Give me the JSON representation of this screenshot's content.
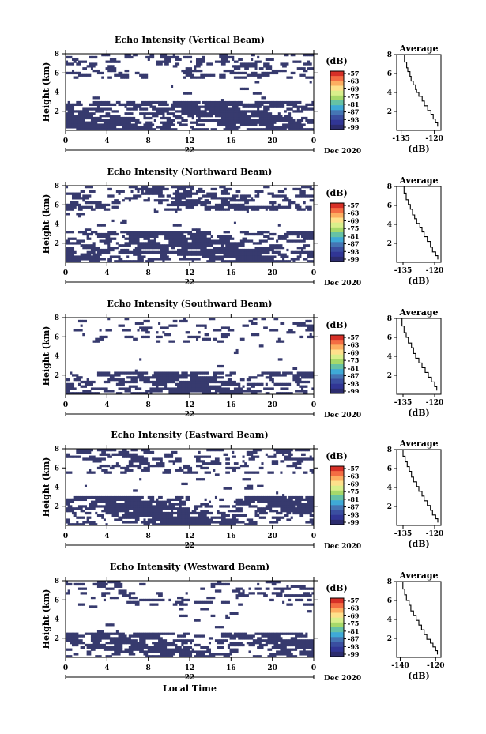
{
  "chart_data": [
    {
      "type": "heatmap",
      "title": "Echo Intensity (Vertical Beam)",
      "ylabel": "Height (km)",
      "xlim": [
        0,
        24
      ],
      "ylim": [
        0,
        8
      ],
      "x_ticks": [
        "0",
        "4",
        "8",
        "12",
        "16",
        "20",
        "0"
      ],
      "y_ticks": [
        "2",
        "4",
        "6",
        "8"
      ],
      "date_day": "22",
      "date_label": "Dec 2020",
      "colorbar": {
        "unit": "(dB)",
        "labels": [
          "-57",
          "-63",
          "-69",
          "-75",
          "-81",
          "-87",
          "-93",
          "-99"
        ]
      },
      "layers": [
        {
          "y0": 0,
          "y1": 3.1,
          "fill": 0.88
        },
        {
          "y0": 3.1,
          "y1": 5.3,
          "fill": 0.02
        },
        {
          "y0": 5.3,
          "y1": 8,
          "fill": 0.4
        }
      ],
      "average_profile": {
        "title": "Average",
        "xlabel": "(dB)",
        "x_ticks": [
          "-135",
          "-120"
        ],
        "y_ticks": [
          "2",
          "4",
          "6",
          "8"
        ],
        "xlim": [
          -137,
          -117
        ],
        "ylim": [
          0,
          8
        ],
        "x": [
          -134,
          -133.5,
          -132.5,
          -132,
          -131,
          -130.5,
          -129.5,
          -128.5,
          -128,
          -127,
          -125.5,
          -124.5,
          -123,
          -121.5,
          -120.5,
          -119.5,
          -118.5
        ],
        "y": [
          8,
          7.2,
          6.6,
          6.2,
          5.7,
          5.2,
          4.8,
          4.3,
          4.0,
          3.6,
          3.1,
          2.6,
          2.1,
          1.7,
          1.2,
          0.8,
          0.4
        ]
      }
    },
    {
      "type": "heatmap",
      "title": "Echo Intensity (Northward Beam)",
      "ylabel": "Height (km)",
      "xlim": [
        0,
        24
      ],
      "ylim": [
        0,
        8
      ],
      "x_ticks": [
        "0",
        "4",
        "8",
        "12",
        "16",
        "20",
        "0"
      ],
      "y_ticks": [
        "2",
        "4",
        "6",
        "8"
      ],
      "date_day": "22",
      "date_label": "Dec 2020",
      "colorbar": {
        "unit": "(dB)",
        "labels": [
          "-57",
          "-63",
          "-69",
          "-75",
          "-81",
          "-87",
          "-93",
          "-99"
        ]
      },
      "layers": [
        {
          "y0": 0,
          "y1": 3.3,
          "fill": 0.85
        },
        {
          "y0": 3.3,
          "y1": 5.4,
          "fill": 0.05
        },
        {
          "y0": 5.4,
          "y1": 8,
          "fill": 0.55
        }
      ],
      "average_profile": {
        "title": "Average",
        "xlabel": "(dB)",
        "x_ticks": [
          "-135",
          "-120"
        ],
        "y_ticks": [
          "2",
          "4",
          "6",
          "8"
        ],
        "xlim": [
          -138,
          -117
        ],
        "ylim": [
          0,
          8
        ],
        "x": [
          -135,
          -134.5,
          -133.5,
          -132.5,
          -131.5,
          -130.5,
          -129.5,
          -128.5,
          -127,
          -126,
          -125,
          -123.5,
          -122,
          -121,
          -119.5,
          -118.5
        ],
        "y": [
          8,
          7.3,
          6.6,
          6.1,
          5.6,
          5.0,
          4.6,
          4.1,
          3.7,
          3.2,
          2.7,
          2.2,
          1.6,
          1.1,
          0.7,
          0.3
        ]
      }
    },
    {
      "type": "heatmap",
      "title": "Echo Intensity (Southward Beam)",
      "ylabel": "Height (km)",
      "xlim": [
        0,
        24
      ],
      "ylim": [
        0,
        8
      ],
      "x_ticks": [
        "0",
        "4",
        "8",
        "12",
        "16",
        "20",
        "0"
      ],
      "y_ticks": [
        "2",
        "4",
        "6",
        "8"
      ],
      "date_day": "22",
      "date_label": "Dec 2020",
      "colorbar": {
        "unit": "(dB)",
        "labels": [
          "-57",
          "-63",
          "-69",
          "-75",
          "-81",
          "-87",
          "-93",
          "-99"
        ]
      },
      "layers": [
        {
          "y0": 0,
          "y1": 2.3,
          "fill": 0.8
        },
        {
          "y0": 2.3,
          "y1": 5.5,
          "fill": 0.03
        },
        {
          "y0": 5.5,
          "y1": 8,
          "fill": 0.22
        }
      ],
      "average_profile": {
        "title": "Average",
        "xlabel": "(dB)",
        "x_ticks": [
          "-135",
          "-120"
        ],
        "y_ticks": [
          "2",
          "4",
          "6",
          "8"
        ],
        "xlim": [
          -138,
          -117
        ],
        "ylim": [
          0,
          8
        ],
        "x": [
          -136,
          -135.5,
          -134.5,
          -133.5,
          -132.5,
          -131,
          -130,
          -129,
          -127.5,
          -126,
          -124.5,
          -123,
          -121.5,
          -120,
          -119
        ],
        "y": [
          8,
          7.2,
          6.5,
          6.0,
          5.4,
          4.9,
          4.3,
          3.8,
          3.3,
          2.8,
          2.3,
          1.8,
          1.3,
          0.8,
          0.4
        ]
      }
    },
    {
      "type": "heatmap",
      "title": "Echo Intensity (Eastward Beam)",
      "ylabel": "Height (km)",
      "xlim": [
        0,
        24
      ],
      "ylim": [
        0,
        8
      ],
      "x_ticks": [
        "0",
        "4",
        "8",
        "12",
        "16",
        "20",
        "0"
      ],
      "y_ticks": [
        "2",
        "4",
        "6",
        "8"
      ],
      "date_day": "22",
      "date_label": "Dec 2020",
      "colorbar": {
        "unit": "(dB)",
        "labels": [
          "-57",
          "-63",
          "-69",
          "-75",
          "-81",
          "-87",
          "-93",
          "-99"
        ]
      },
      "layers": [
        {
          "y0": 0,
          "y1": 3.0,
          "fill": 0.85
        },
        {
          "y0": 3.0,
          "y1": 5.4,
          "fill": 0.04
        },
        {
          "y0": 5.4,
          "y1": 8,
          "fill": 0.45
        }
      ],
      "average_profile": {
        "title": "Average",
        "xlabel": "(dB)",
        "x_ticks": [
          "-135",
          "-120"
        ],
        "y_ticks": [
          "2",
          "4",
          "6",
          "8"
        ],
        "xlim": [
          -138,
          -117
        ],
        "ylim": [
          0,
          8
        ],
        "x": [
          -135.5,
          -135,
          -134,
          -133,
          -132,
          -131,
          -130,
          -128.5,
          -127.5,
          -126,
          -125,
          -123.5,
          -122,
          -121,
          -119.5,
          -118.5
        ],
        "y": [
          8,
          7.3,
          6.7,
          6.2,
          5.7,
          5.1,
          4.6,
          4.1,
          3.6,
          3.1,
          2.6,
          2.1,
          1.6,
          1.1,
          0.7,
          0.3
        ]
      }
    },
    {
      "type": "heatmap",
      "title": "Echo Intensity (Westward Beam)",
      "ylabel": "Height (km)",
      "xlabel": "Local Time",
      "xlim": [
        0,
        24
      ],
      "ylim": [
        0,
        8
      ],
      "x_ticks": [
        "0",
        "4",
        "8",
        "12",
        "16",
        "20",
        "0"
      ],
      "y_ticks": [
        "2",
        "4",
        "6",
        "8"
      ],
      "date_day": "22",
      "date_label": "Dec 2020",
      "colorbar": {
        "unit": "(dB)",
        "labels": [
          "-57",
          "-63",
          "-69",
          "-75",
          "-81",
          "-87",
          "-93",
          "-99"
        ]
      },
      "layers": [
        {
          "y0": 0,
          "y1": 2.6,
          "fill": 0.78
        },
        {
          "y0": 2.6,
          "y1": 5.5,
          "fill": 0.04
        },
        {
          "y0": 5.5,
          "y1": 8,
          "fill": 0.25
        }
      ],
      "average_profile": {
        "title": "Average",
        "xlabel": "(dB)",
        "x_ticks": [
          "-140",
          "-120"
        ],
        "y_ticks": [
          "2",
          "4",
          "6",
          "8"
        ],
        "xlim": [
          -142,
          -117
        ],
        "ylim": [
          0,
          8
        ],
        "x": [
          -139,
          -138.5,
          -137.5,
          -136.5,
          -135,
          -134,
          -132.5,
          -131,
          -129.5,
          -128,
          -126.5,
          -125,
          -123,
          -121.5,
          -120,
          -119
        ],
        "y": [
          8,
          7.2,
          6.6,
          6.0,
          5.5,
          4.9,
          4.4,
          3.9,
          3.4,
          2.9,
          2.4,
          1.9,
          1.5,
          1.1,
          0.7,
          0.3
        ]
      }
    }
  ]
}
